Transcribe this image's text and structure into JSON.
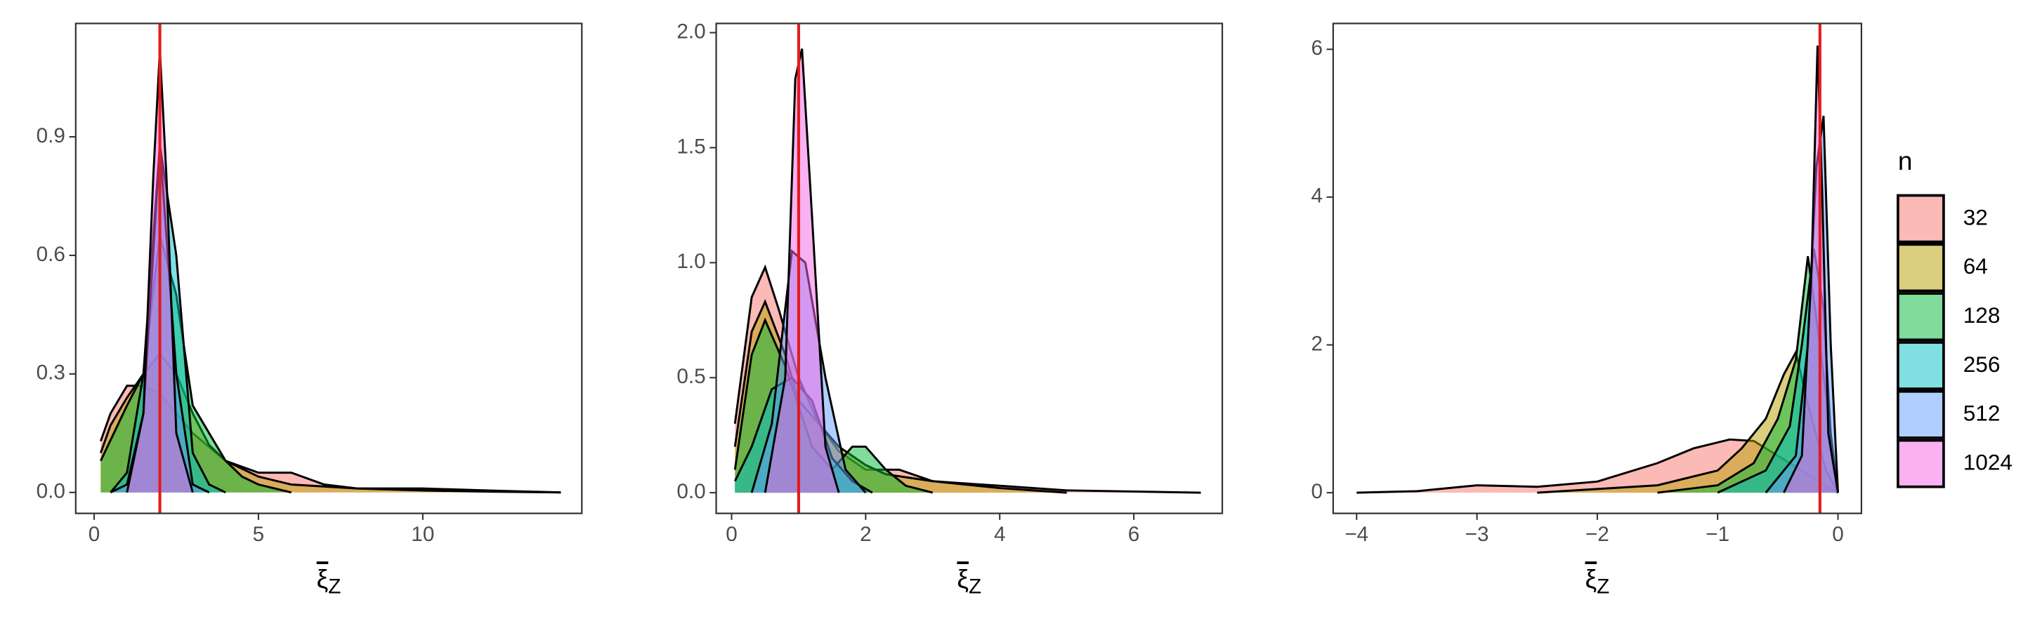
{
  "chart_data": [
    {
      "type": "density",
      "xlabel": "ξ",
      "xlabel_subscript": "Z",
      "xlim": [
        -0.56,
        14.84
      ],
      "ylim": [
        -0.053,
        1.187
      ],
      "xticks": [
        0,
        5,
        10
      ],
      "yticks": [
        {
          "value": 0,
          "label": "0.0"
        },
        0.3,
        0.6,
        0.9
      ],
      "vline": 2,
      "vline_color": "#e41a1c",
      "grid": false,
      "series": [
        {
          "name": "32",
          "color": "#F8766D",
          "x": [
            0.2,
            0.5,
            1,
            1.5,
            2,
            2.5,
            3,
            4,
            5,
            6,
            7,
            8,
            10,
            12,
            14.2
          ],
          "values": [
            0.13,
            0.2,
            0.27,
            0.27,
            0.25,
            0.2,
            0.15,
            0.08,
            0.05,
            0.05,
            0.02,
            0.01,
            0.01,
            0.005,
            0
          ]
        },
        {
          "name": "64",
          "color": "#B79F00",
          "x": [
            0.2,
            0.5,
            1,
            1.5,
            2,
            2.5,
            3,
            3.5,
            4,
            5,
            6,
            8,
            10,
            12,
            14.2
          ],
          "values": [
            0.1,
            0.17,
            0.24,
            0.3,
            0.35,
            0.3,
            0.2,
            0.12,
            0.08,
            0.04,
            0.02,
            0.01,
            0.005,
            0.002,
            0
          ]
        },
        {
          "name": "128",
          "color": "#00BA38",
          "x": [
            0.2,
            0.6,
            1,
            1.5,
            2,
            2.5,
            3,
            3.5,
            4,
            4.5,
            5,
            6
          ],
          "values": [
            0.08,
            0.15,
            0.22,
            0.3,
            0.65,
            0.5,
            0.22,
            0.15,
            0.08,
            0.04,
            0.02,
            0
          ]
        },
        {
          "name": "256",
          "color": "#00BFC4",
          "x": [
            0.5,
            1,
            1.5,
            2,
            2.5,
            3,
            3.5,
            4
          ],
          "values": [
            0,
            0.05,
            0.3,
            0.88,
            0.6,
            0.1,
            0.02,
            0
          ]
        },
        {
          "name": "512",
          "color": "#619CFF",
          "x": [
            0.5,
            1,
            1.5,
            2,
            2.5,
            3,
            3.5
          ],
          "values": [
            0,
            0.02,
            0.2,
            0.88,
            0.3,
            0.02,
            0
          ]
        },
        {
          "name": "1024",
          "color": "#F564E3",
          "x": [
            1,
            1.5,
            1.8,
            2,
            2.2,
            2.5,
            3
          ],
          "values": [
            0,
            0.2,
            0.8,
            1.12,
            0.8,
            0.15,
            0
          ]
        }
      ]
    },
    {
      "type": "density",
      "xlabel": "ξ",
      "xlabel_subscript": "Z",
      "xlim": [
        -0.23,
        7.32
      ],
      "ylim": [
        -0.09,
        2.04
      ],
      "xticks": [
        0,
        2,
        4,
        6
      ],
      "yticks": [
        {
          "value": 0,
          "label": "0.0"
        },
        0.5,
        {
          "value": 1,
          "label": "1.0"
        },
        1.5,
        {
          "value": 2,
          "label": "2.0"
        }
      ],
      "vline": 1,
      "vline_color": "#e41a1c",
      "grid": false,
      "series": [
        {
          "name": "32",
          "color": "#F8766D",
          "x": [
            0.05,
            0.3,
            0.5,
            0.7,
            1,
            1.3,
            1.6,
            2,
            2.5,
            3,
            4,
            5,
            7
          ],
          "values": [
            0.3,
            0.85,
            0.98,
            0.8,
            0.5,
            0.3,
            0.18,
            0.1,
            0.1,
            0.05,
            0.03,
            0.01,
            0
          ]
        },
        {
          "name": "64",
          "color": "#B79F00",
          "x": [
            0.05,
            0.3,
            0.5,
            0.8,
            1,
            1.3,
            1.6,
            2,
            2.3,
            3,
            4,
            4.5,
            5
          ],
          "values": [
            0.2,
            0.7,
            0.83,
            0.6,
            0.4,
            0.3,
            0.2,
            0.12,
            0.08,
            0.05,
            0.02,
            0.01,
            0
          ]
        },
        {
          "name": "128",
          "color": "#00BA38",
          "x": [
            0.05,
            0.3,
            0.5,
            0.8,
            1.2,
            1.5,
            1.8,
            2,
            2.3,
            2.6,
            3
          ],
          "values": [
            0.1,
            0.6,
            0.75,
            0.55,
            0.2,
            0.1,
            0.2,
            0.2,
            0.1,
            0.03,
            0
          ]
        },
        {
          "name": "256",
          "color": "#00BFC4",
          "x": [
            0.05,
            0.3,
            0.6,
            0.9,
            1.2,
            1.5,
            1.8,
            2.1
          ],
          "values": [
            0.05,
            0.2,
            0.45,
            0.5,
            0.4,
            0.15,
            0.05,
            0
          ]
        },
        {
          "name": "512",
          "color": "#619CFF",
          "x": [
            0.3,
            0.6,
            0.9,
            1.1,
            1.4,
            1.7,
            2
          ],
          "values": [
            0,
            0.3,
            1.05,
            1.0,
            0.5,
            0.1,
            0
          ]
        },
        {
          "name": "1024",
          "color": "#F564E3",
          "x": [
            0.5,
            0.8,
            0.95,
            1.05,
            1.2,
            1.4,
            1.6
          ],
          "values": [
            0,
            0.5,
            1.8,
            1.93,
            1.2,
            0.2,
            0
          ]
        }
      ]
    },
    {
      "type": "density",
      "xlabel": "ξ",
      "xlabel_subscript": "Z",
      "legend_title": "n",
      "xlim": [
        -4.195,
        0.195
      ],
      "ylim": [
        -0.28,
        6.35
      ],
      "xticks": [
        {
          "value": -4,
          "label": "−4"
        },
        {
          "value": -3,
          "label": "−3"
        },
        {
          "value": -2,
          "label": "−2"
        },
        {
          "value": -1,
          "label": "−1"
        },
        0
      ],
      "yticks": [
        0,
        2,
        4,
        6
      ],
      "vline": -0.15,
      "vline_color": "#e41a1c",
      "grid": false,
      "series": [
        {
          "name": "32",
          "color": "#F8766D",
          "x": [
            -4,
            -3.5,
            -3,
            -2.5,
            -2,
            -1.5,
            -1.2,
            -0.9,
            -0.7,
            -0.5,
            -0.3,
            -0.1,
            0
          ],
          "values": [
            0,
            0.02,
            0.1,
            0.08,
            0.15,
            0.4,
            0.6,
            0.72,
            0.7,
            0.5,
            0.3,
            0.1,
            0
          ]
        },
        {
          "name": "64",
          "color": "#B79F00",
          "x": [
            -2.5,
            -2,
            -1.5,
            -1,
            -0.8,
            -0.6,
            -0.45,
            -0.35,
            -0.25,
            -0.1,
            0
          ],
          "values": [
            0,
            0.05,
            0.1,
            0.3,
            0.6,
            1.0,
            1.6,
            1.9,
            1.2,
            0.3,
            0
          ]
        },
        {
          "name": "128",
          "color": "#00BA38",
          "x": [
            -1.5,
            -1,
            -0.7,
            -0.5,
            -0.35,
            -0.25,
            -0.15,
            0
          ],
          "values": [
            0,
            0.1,
            0.4,
            1.0,
            1.8,
            3.2,
            2.0,
            0
          ]
        },
        {
          "name": "256",
          "color": "#00BFC4",
          "x": [
            -1,
            -0.6,
            -0.4,
            -0.3,
            -0.2,
            -0.12,
            -0.05,
            0
          ],
          "values": [
            0,
            0.3,
            0.9,
            2.0,
            3.3,
            2.5,
            0.5,
            0
          ]
        },
        {
          "name": "512",
          "color": "#619CFF",
          "x": [
            -0.6,
            -0.35,
            -0.25,
            -0.18,
            -0.12,
            -0.06,
            0
          ],
          "values": [
            0,
            0.5,
            2.0,
            4.4,
            5.1,
            2.0,
            0
          ]
        },
        {
          "name": "1024",
          "color": "#F564E3",
          "x": [
            -0.45,
            -0.3,
            -0.22,
            -0.17,
            -0.13,
            -0.08,
            0
          ],
          "values": [
            0,
            0.5,
            3.0,
            6.05,
            4.0,
            0.8,
            0
          ]
        }
      ]
    }
  ]
}
